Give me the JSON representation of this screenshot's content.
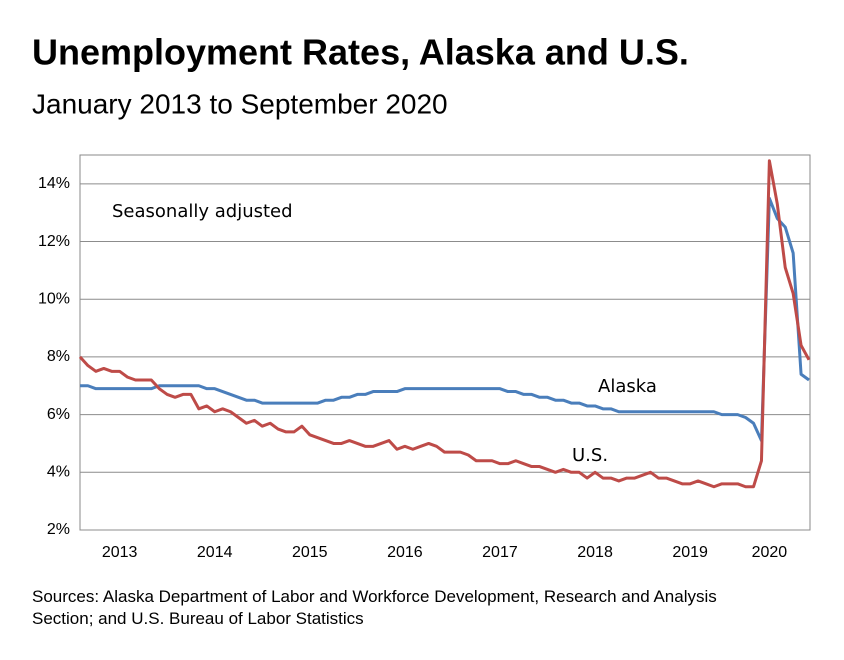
{
  "chart_data": {
    "type": "line",
    "title": "Unemployment Rates, Alaska and U.S.",
    "subtitle": "January 2013 to September 2020",
    "annotation": "Seasonally adjusted",
    "source": "Sources: Alaska Department of Labor and Workforce Development, Research and Analysis Section; and U.S. Bureau of Labor Statistics",
    "categories": [
      null,
      null,
      null,
      null,
      null,
      "2013",
      null,
      null,
      null,
      null,
      null,
      null,
      null,
      null,
      null,
      null,
      null,
      "2014",
      null,
      null,
      null,
      null,
      null,
      null,
      null,
      null,
      null,
      null,
      null,
      "2015",
      null,
      null,
      null,
      null,
      null,
      null,
      null,
      null,
      null,
      null,
      null,
      "2016",
      null,
      null,
      null,
      null,
      null,
      null,
      null,
      null,
      null,
      null,
      null,
      "2017",
      null,
      null,
      null,
      null,
      null,
      null,
      null,
      null,
      null,
      null,
      null,
      "2018",
      null,
      null,
      null,
      null,
      null,
      null,
      null,
      null,
      null,
      null,
      null,
      "2019",
      null,
      null,
      null,
      null,
      null,
      null,
      null,
      null,
      null,
      "2020",
      null,
      null,
      null,
      null,
      null
    ],
    "series": [
      {
        "name": "Alaska",
        "color": "#4a7ebb",
        "values": [
          7.0,
          7.0,
          6.9,
          6.9,
          6.9,
          6.9,
          6.9,
          6.9,
          6.9,
          6.9,
          7.0,
          7.0,
          7.0,
          7.0,
          7.0,
          7.0,
          6.9,
          6.9,
          6.8,
          6.7,
          6.6,
          6.5,
          6.5,
          6.4,
          6.4,
          6.4,
          6.4,
          6.4,
          6.4,
          6.4,
          6.4,
          6.5,
          6.5,
          6.6,
          6.6,
          6.7,
          6.7,
          6.8,
          6.8,
          6.8,
          6.8,
          6.9,
          6.9,
          6.9,
          6.9,
          6.9,
          6.9,
          6.9,
          6.9,
          6.9,
          6.9,
          6.9,
          6.9,
          6.9,
          6.8,
          6.8,
          6.7,
          6.7,
          6.6,
          6.6,
          6.5,
          6.5,
          6.4,
          6.4,
          6.3,
          6.3,
          6.2,
          6.2,
          6.1,
          6.1,
          6.1,
          6.1,
          6.1,
          6.1,
          6.1,
          6.1,
          6.1,
          6.1,
          6.1,
          6.1,
          6.1,
          6.0,
          6.0,
          6.0,
          5.9,
          5.7,
          5.1,
          13.5,
          12.8,
          12.5,
          11.6,
          7.4,
          7.2
        ]
      },
      {
        "name": "U.S.",
        "color": "#be4b48",
        "values": [
          8.0,
          7.7,
          7.5,
          7.6,
          7.5,
          7.5,
          7.3,
          7.2,
          7.2,
          7.2,
          6.9,
          6.7,
          6.6,
          6.7,
          6.7,
          6.2,
          6.3,
          6.1,
          6.2,
          6.1,
          5.9,
          5.7,
          5.8,
          5.6,
          5.7,
          5.5,
          5.4,
          5.4,
          5.6,
          5.3,
          5.2,
          5.1,
          5.0,
          5.0,
          5.1,
          5.0,
          4.9,
          4.9,
          5.0,
          5.1,
          4.8,
          4.9,
          4.8,
          4.9,
          5.0,
          4.9,
          4.7,
          4.7,
          4.7,
          4.6,
          4.4,
          4.4,
          4.4,
          4.3,
          4.3,
          4.4,
          4.3,
          4.2,
          4.2,
          4.1,
          4.0,
          4.1,
          4.0,
          4.0,
          3.8,
          4.0,
          3.8,
          3.8,
          3.7,
          3.8,
          3.8,
          3.9,
          4.0,
          3.8,
          3.8,
          3.7,
          3.6,
          3.6,
          3.7,
          3.6,
          3.5,
          3.6,
          3.6,
          3.6,
          3.5,
          3.5,
          4.4,
          14.8,
          13.3,
          11.1,
          10.2,
          8.4,
          7.9
        ]
      }
    ],
    "ylim": [
      2,
      15
    ],
    "yticks": [
      {
        "value": 2,
        "label": "2%"
      },
      {
        "value": 4,
        "label": "4%"
      },
      {
        "value": 6,
        "label": "6%"
      },
      {
        "value": 8,
        "label": "8%"
      },
      {
        "value": 10,
        "label": "10%"
      },
      {
        "value": 12,
        "label": "12%"
      },
      {
        "value": 14,
        "label": "14%"
      }
    ],
    "grid": true
  }
}
